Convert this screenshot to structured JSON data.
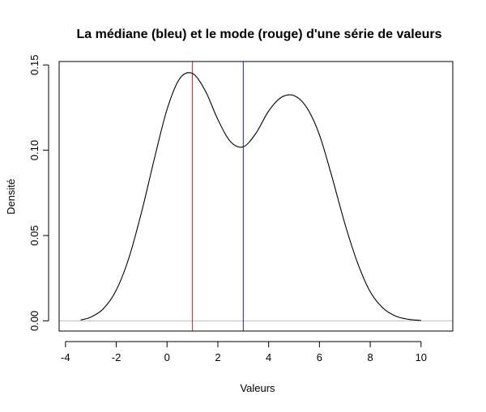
{
  "chart_data": {
    "type": "line",
    "title": "La médiane (bleu) et le mode (rouge) d'une série de valeurs",
    "xlabel": "Valeurs",
    "ylabel": "Densité",
    "xlim": [
      -4.25,
      11.25
    ],
    "ylim": [
      -0.006,
      0.152
    ],
    "x_ticks": [
      -4,
      -2,
      0,
      2,
      4,
      6,
      8,
      10
    ],
    "y_ticks": [
      0.0,
      0.05,
      0.1,
      0.15
    ],
    "y_tick_labels": [
      "0.00",
      "0.05",
      "0.10",
      "0.15"
    ],
    "series": [
      {
        "color": "#000000",
        "x": [
          -3.4,
          -3.0,
          -2.5,
          -2.0,
          -1.5,
          -1.0,
          -0.5,
          0.0,
          0.5,
          1.0,
          1.5,
          2.0,
          2.5,
          3.0,
          3.5,
          4.0,
          4.5,
          5.0,
          5.5,
          6.0,
          6.5,
          7.0,
          7.5,
          8.0,
          8.5,
          9.0,
          9.5,
          10.0
        ],
        "y": [
          0.0005,
          0.0022,
          0.0072,
          0.018,
          0.037,
          0.064,
          0.095,
          0.124,
          0.142,
          0.145,
          0.135,
          0.118,
          0.105,
          0.102,
          0.11,
          0.123,
          0.131,
          0.132,
          0.125,
          0.109,
          0.084,
          0.057,
          0.034,
          0.017,
          0.0075,
          0.0028,
          0.0009,
          0.0002
        ]
      }
    ],
    "vlines": [
      {
        "label": "mode",
        "x": 1.0,
        "color": "#dd1c1c"
      },
      {
        "label": "médiane",
        "x": 3.0,
        "color": "#1c1cc8"
      }
    ],
    "hline": {
      "y": 0.0,
      "color": "#bebebe"
    },
    "grid": false,
    "legend": "none"
  }
}
